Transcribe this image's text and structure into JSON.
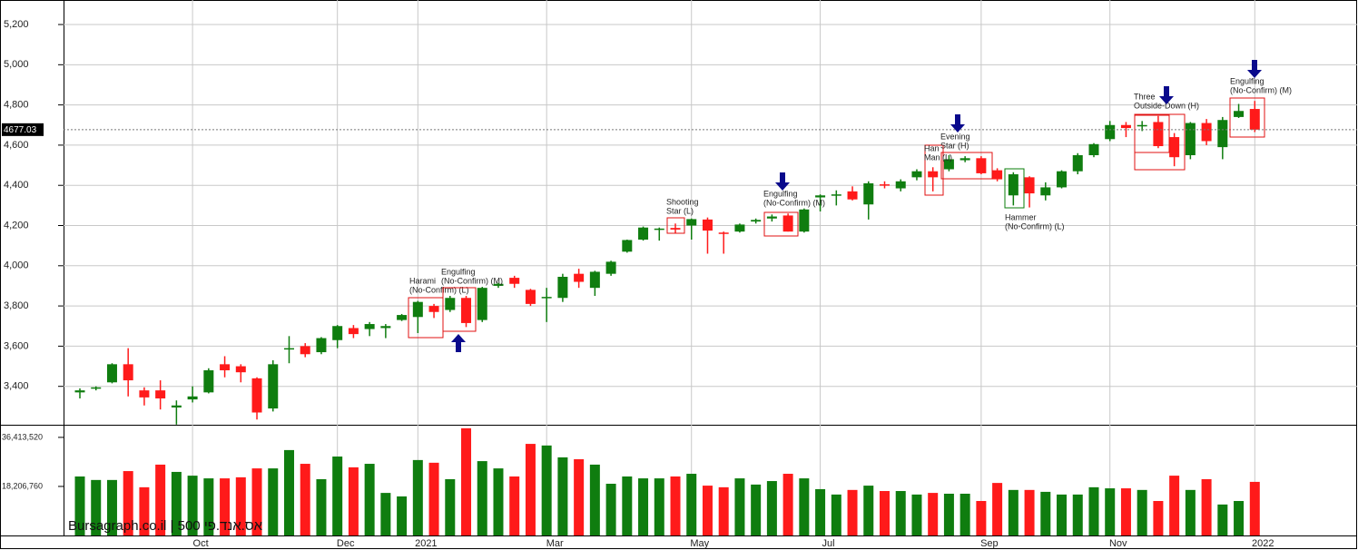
{
  "chart_data": [
    {
      "type": "candlestick",
      "categories": [
        null,
        null,
        null,
        null,
        null,
        null,
        null,
        "Oct",
        null,
        null,
        null,
        null,
        null,
        null,
        null,
        null,
        "Dec",
        null,
        null,
        null,
        null,
        "2021",
        null,
        null,
        null,
        null,
        null,
        null,
        null,
        "Mar",
        null,
        null,
        null,
        null,
        null,
        null,
        null,
        null,
        "May",
        null,
        null,
        null,
        null,
        null,
        null,
        null,
        "Jul",
        null,
        null,
        null,
        null,
        null,
        null,
        null,
        null,
        null,
        "Sep",
        null,
        null,
        null,
        null,
        null,
        null,
        null,
        "Nov",
        null,
        null,
        null,
        null,
        null,
        null,
        null,
        null,
        "2022"
      ],
      "open": [
        3370,
        3390,
        3420,
        3510,
        3380,
        3380,
        3295,
        3335,
        3370,
        3510,
        3500,
        3440,
        3290,
        3585,
        3600,
        3570,
        3630,
        3690,
        3685,
        3690,
        3730,
        3745,
        3800,
        3780,
        3840,
        3730,
        3900,
        3940,
        3880,
        3840,
        3840,
        3960,
        3890,
        3960,
        4070,
        4130,
        4180,
        4188,
        4200,
        4230,
        4165,
        4170,
        4220,
        4235,
        4250,
        4170,
        4340,
        4350,
        4370,
        4305,
        4405,
        4385,
        4440,
        4470,
        4480,
        4525,
        4535,
        4475,
        4350,
        4440,
        4350,
        4390,
        4470,
        4550,
        4630,
        4700,
        4695,
        4715,
        4640,
        4550,
        4710,
        4590,
        4740,
        4780
      ],
      "high": [
        3390,
        3400,
        3515,
        3590,
        3395,
        3430,
        3330,
        3400,
        3490,
        3550,
        3510,
        3445,
        3530,
        3650,
        3615,
        3645,
        3705,
        3705,
        3720,
        3710,
        3760,
        3825,
        3810,
        3850,
        3850,
        3895,
        3915,
        3950,
        3885,
        3890,
        3960,
        3985,
        3975,
        4025,
        4130,
        4195,
        4190,
        4210,
        4235,
        4240,
        4170,
        4210,
        4235,
        4255,
        4260,
        4285,
        4355,
        4375,
        4395,
        4420,
        4420,
        4430,
        4480,
        4490,
        4550,
        4545,
        4545,
        4485,
        4465,
        4445,
        4415,
        4475,
        4560,
        4610,
        4720,
        4715,
        4720,
        4745,
        4660,
        4715,
        4730,
        4740,
        4805,
        4820
      ],
      "low": [
        3340,
        3380,
        3415,
        3350,
        3305,
        3285,
        3210,
        3320,
        3365,
        3445,
        3420,
        3235,
        3275,
        3515,
        3545,
        3560,
        3590,
        3640,
        3650,
        3640,
        3725,
        3665,
        3740,
        3770,
        3695,
        3720,
        3890,
        3890,
        3800,
        3720,
        3820,
        3890,
        3850,
        3950,
        4065,
        4125,
        4125,
        4160,
        4130,
        4060,
        4060,
        4165,
        4210,
        4220,
        4170,
        4165,
        4270,
        4300,
        4325,
        4230,
        4385,
        4370,
        4425,
        4370,
        4470,
        4515,
        4455,
        4420,
        4300,
        4290,
        4325,
        4385,
        4455,
        4540,
        4620,
        4640,
        4670,
        4585,
        4495,
        4530,
        4600,
        4530,
        4735,
        4665
      ],
      "close": [
        3380,
        3395,
        3510,
        3430,
        3345,
        3340,
        3305,
        3350,
        3480,
        3480,
        3470,
        3270,
        3510,
        3590,
        3560,
        3640,
        3700,
        3660,
        3710,
        3700,
        3755,
        3820,
        3770,
        3840,
        3715,
        3890,
        3910,
        3910,
        3810,
        3845,
        3945,
        3920,
        3970,
        4020,
        4128,
        4190,
        4185,
        4180,
        4232,
        4175,
        4160,
        4205,
        4228,
        4245,
        4170,
        4280,
        4350,
        4355,
        4330,
        4410,
        4400,
        4420,
        4470,
        4440,
        4530,
        4535,
        4460,
        4430,
        4455,
        4360,
        4390,
        4470,
        4550,
        4605,
        4700,
        4685,
        4700,
        4595,
        4540,
        4710,
        4620,
        4725,
        4770,
        4677.03
      ],
      "up_color": "#0f7d0f",
      "down_color": "#ff1a1a",
      "ylim": [
        3209,
        5322
      ],
      "yticks": [
        {
          "value": 3400,
          "label": "3,400"
        },
        {
          "value": 3600,
          "label": "3,600"
        },
        {
          "value": 3800,
          "label": "3,800"
        },
        {
          "value": 4000,
          "label": "4,000"
        },
        {
          "value": 4200,
          "label": "4,200"
        },
        {
          "value": 4400,
          "label": "4,400"
        },
        {
          "value": 4600,
          "label": "4,600"
        },
        {
          "value": 4800,
          "label": "4,800"
        },
        {
          "value": 5000,
          "label": "5,000"
        },
        {
          "value": 5200,
          "label": "5,200"
        }
      ],
      "grid": true,
      "last_price": 4677.03,
      "annotations": [
        [
          "Harami",
          "(No-Confirm) (L)"
        ],
        [
          "Engulfing",
          "(No-Confirm) (M)"
        ],
        [
          "Shooting",
          "Star (L)"
        ],
        [
          "Engulfing",
          "(No-Confirm) (M)"
        ],
        [
          "Han",
          "Man (L)"
        ],
        [
          "Evening",
          "Star (H)"
        ],
        [
          "Hammer",
          "(No-Confirm) (L)"
        ],
        [
          "Three",
          "Outside-Down (H)"
        ],
        [
          "Engulfing",
          "(No-Confirm) (M)"
        ]
      ],
      "watermark": "Bursagraph.co.il | 500 אס.אנד.פי"
    },
    {
      "type": "bar",
      "values": [
        21900000,
        20600000,
        20600000,
        23900000,
        17900000,
        26300000,
        23600000,
        22200000,
        21200000,
        21200000,
        21600000,
        24900000,
        24900000,
        31700000,
        26600000,
        20900000,
        29300000,
        25300000,
        26600000,
        15800000,
        14500000,
        28000000,
        27000000,
        20900000,
        39800000,
        27600000,
        24900000,
        21900000,
        34000000,
        33400000,
        29000000,
        28300000,
        26300000,
        19200000,
        21900000,
        21200000,
        21200000,
        21900000,
        22900000,
        18500000,
        17900000,
        21200000,
        18900000,
        20200000,
        22900000,
        21200000,
        17200000,
        15200000,
        16900000,
        18500000,
        16500000,
        16500000,
        15200000,
        15800000,
        15500000,
        15500000,
        12800000,
        19500000,
        16900000,
        16900000,
        16200000,
        15200000,
        15200000,
        17900000,
        17500000,
        17500000,
        16900000,
        12800000,
        22200000,
        16900000,
        20900000,
        11500000,
        12800000,
        19900000
      ],
      "ylim": [
        0,
        41100000
      ],
      "yticks": [
        {
          "value": 18206760,
          "label": "18,206,760"
        },
        {
          "value": 36413520,
          "label": "36,413,520"
        }
      ]
    }
  ]
}
